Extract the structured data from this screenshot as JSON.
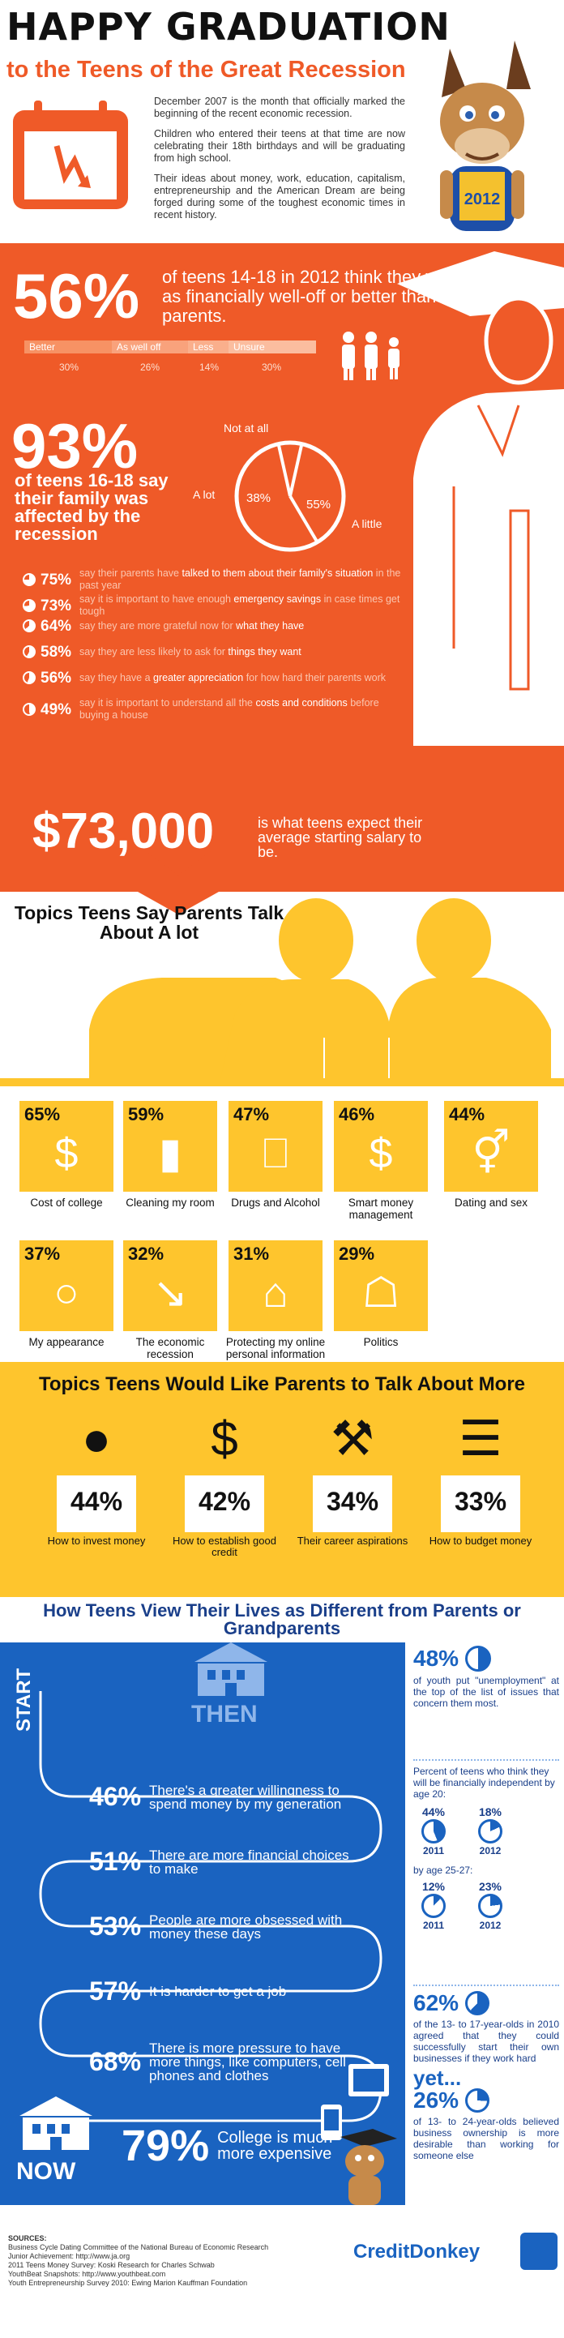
{
  "header": {
    "title": "HAPPY GRADUATION",
    "subtitle": "to the Teens of the Great Recession",
    "intro": [
      "December 2007 is the month that officially marked the beginning of the recent economic recession.",
      "Children who entered their teens at that time are now celebrating their 18th birthdays and will be graduating from high school.",
      "Their ideas about money, work, education, capitalism, entrepreneurship and the American Dream are being forged during some of the toughest economic times in recent history."
    ],
    "mascot_year": "2012"
  },
  "well_off": {
    "percent": "56%",
    "text": "of teens 14-18 in 2012 think they will be as financially well-off or better than their parents.",
    "bars": [
      {
        "label": "Better",
        "value": "30%"
      },
      {
        "label": "As well off",
        "value": "26%"
      },
      {
        "label": "Less",
        "value": "14%"
      },
      {
        "label": "Unsure",
        "value": "30%"
      }
    ]
  },
  "affected": {
    "percent": "93%",
    "text": "of teens 16-18 say their family was affected by the recession",
    "pie_labels": {
      "not_at_all": "Not at all",
      "a_lot": "A lot",
      "a_little": "A little"
    },
    "pie_values": {
      "a_lot": "38%",
      "a_little": "55%"
    },
    "chart_data": {
      "type": "pie",
      "categories": [
        "A lot",
        "A little",
        "Not at all"
      ],
      "values": [
        38,
        55,
        7
      ]
    }
  },
  "facts": [
    {
      "pct": "75%",
      "pre": "say their parents have ",
      "hl": "talked to them about their family's situation",
      "post": " in the past year"
    },
    {
      "pct": "73%",
      "pre": "say it is important to have enough ",
      "hl": "emergency savings",
      "post": " in case times get tough"
    },
    {
      "pct": "64%",
      "pre": "say they are more grateful now for ",
      "hl": "what they have",
      "post": ""
    },
    {
      "pct": "58%",
      "pre": "say they are less likely to ask for ",
      "hl": "things they want",
      "post": ""
    },
    {
      "pct": "56%",
      "pre": "say they have a ",
      "hl": "greater appreciation",
      "post": " for how hard their parents work"
    },
    {
      "pct": "49%",
      "pre": "say it is important to understand all the ",
      "hl": "costs and conditions",
      "post": " before buying a house"
    }
  ],
  "salary": {
    "amount": "$73,000",
    "text": "is what teens expect their average starting salary to be."
  },
  "topics_parents": {
    "title": "Topics Teens Say Parents Talk About A lot",
    "items": [
      {
        "pct": "65%",
        "label": "Cost of college",
        "icon": "graduation-cap-dollar-icon"
      },
      {
        "pct": "59%",
        "label": "Cleaning my room",
        "icon": "clothes-icon"
      },
      {
        "pct": "47%",
        "label": "Drugs and Alcohol",
        "icon": "beer-mug-icon"
      },
      {
        "pct": "46%",
        "label": "Smart money management",
        "icon": "dollar-bill-icon"
      },
      {
        "pct": "44%",
        "label": "Dating and sex",
        "icon": "gender-icon"
      },
      {
        "pct": "37%",
        "label": "My appearance",
        "icon": "hand-mirror-icon"
      },
      {
        "pct": "32%",
        "label": "The economic recession",
        "icon": "down-arrow-icon"
      },
      {
        "pct": "31%",
        "label": "Protecting my online personal information",
        "icon": "laptop-home-icon"
      },
      {
        "pct": "29%",
        "label": "Politics",
        "icon": "capitol-icon"
      }
    ]
  },
  "topics_more": {
    "title": "Topics Teens Would Like Parents to Talk About More",
    "items": [
      {
        "pct": "44%",
        "label": "How to invest money",
        "icon": "piggy-bank-icon"
      },
      {
        "pct": "42%",
        "label": "How to establish good credit",
        "icon": "person-dollar-icon"
      },
      {
        "pct": "34%",
        "label": "Their career aspirations",
        "icon": "tools-icon"
      },
      {
        "pct": "33%",
        "label": "How to budget money",
        "icon": "budget-list-icon"
      }
    ]
  },
  "lives": {
    "title": "How Teens View Their Lives as Different from Parents or Grandparents",
    "start": "START",
    "then": "THEN",
    "now": "NOW",
    "stats": [
      {
        "pct": "46%",
        "text": "There's a greater willingness to spend money by my generation"
      },
      {
        "pct": "51%",
        "text": "There are more financial choices to make"
      },
      {
        "pct": "53%",
        "text": "People are more obsessed with money these days"
      },
      {
        "pct": "57%",
        "text": "It is harder to get a job"
      },
      {
        "pct": "68%",
        "text": "There is more pressure to have more things, like computers, cell phones and clothes"
      },
      {
        "pct": "79%",
        "text": "College is much more expensive"
      }
    ],
    "side": {
      "unemp_pct": "48%",
      "unemp_text": "of youth put \"unemployment\" at the top of the list of issues that concern them most.",
      "indep_text": "Percent of teens who think they will be financially independent by age 20:",
      "age20": [
        {
          "pct": "44%",
          "year": "2011"
        },
        {
          "pct": "18%",
          "year": "2012"
        }
      ],
      "age25_label": "by age 25-27:",
      "age25": [
        {
          "pct": "12%",
          "year": "2011"
        },
        {
          "pct": "23%",
          "year": "2012"
        }
      ],
      "biz_pct": "62%",
      "biz_text": "of the 13- to 17-year-olds in 2010 agreed that they could successfully start their own businesses if they work hard",
      "yet": "yet...",
      "own_pct": "26%",
      "own_text": "of 13- to 24-year-olds believed business ownership is more desirable than working for someone else"
    }
  },
  "sources": {
    "title": "SOURCES:",
    "lines": [
      "Business Cycle Dating Committee of the National Bureau of Economic Research",
      "Junior Achievement: http://www.ja.org",
      "2011 Teens Money Survey: Koski Research for Charles Schwab",
      "YouthBeat Snapshots: http://www.youthbeat.com",
      "Youth Entrepreneurship Survey 2010: Ewing Marion Kauffman Foundation"
    ],
    "brand": "CreditDonkey"
  },
  "colors": {
    "orange": "#ef5a28",
    "yellow": "#fec52d",
    "blue": "#1a63c0",
    "navy": "#1a3f8a"
  }
}
